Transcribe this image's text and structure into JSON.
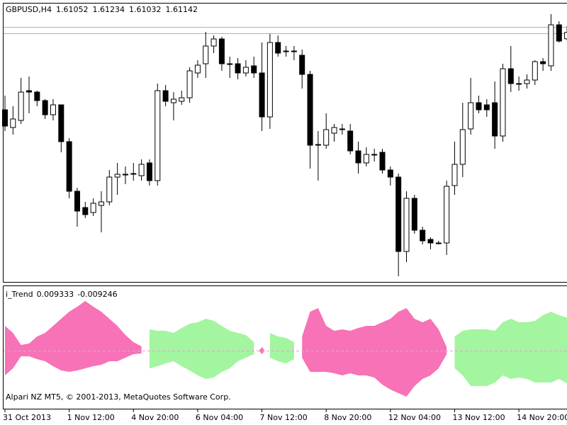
{
  "chart_data": [
    {
      "type": "candlestick",
      "title": "GBPUSD,H4",
      "categories": [
        "31 Oct 2013",
        null,
        null,
        null,
        null,
        null,
        null,
        null,
        "1 Nov 12:00",
        null,
        null,
        null,
        null,
        null,
        null,
        null,
        "4 Nov 20:00",
        null,
        null,
        null,
        null,
        null,
        null,
        null,
        "6 Nov 04:00",
        null,
        null,
        null,
        null,
        null,
        null,
        null,
        "7 Nov 12:00",
        null,
        null,
        null,
        null,
        null,
        null,
        null,
        "8 Nov 20:00",
        null,
        null,
        null,
        null,
        null,
        null,
        null,
        "12 Nov 04:00",
        null,
        null,
        null,
        null,
        null,
        null,
        null,
        "13 Nov 12:00",
        null,
        null,
        null,
        null,
        null,
        null,
        null,
        "14 Nov 20:00",
        null,
        null,
        null,
        null,
        null,
        null
      ],
      "open": [
        1.6005,
        1.598,
        1.599,
        1.6032,
        1.603,
        1.6018,
        1.5998,
        1.6012,
        1.596,
        1.589,
        1.5867,
        1.586,
        1.587,
        1.5875,
        1.591,
        1.5913,
        1.5914,
        1.5912,
        1.593,
        1.5905,
        1.6032,
        1.6015,
        1.6017,
        1.6022,
        1.6057,
        1.607,
        1.6095,
        1.6105,
        1.607,
        1.607,
        1.6057,
        1.6067,
        1.6057,
        1.5995,
        1.61,
        1.6088,
        1.6088,
        1.6082,
        1.6055,
        1.5955,
        1.5955,
        1.5972,
        1.5978,
        1.5975,
        1.5947,
        1.593,
        1.5942,
        1.5945,
        1.592,
        1.591,
        1.5805,
        1.588,
        1.5835,
        1.5822,
        1.5817,
        1.5817,
        1.5898,
        1.5928,
        1.5978,
        1.6015,
        1.6012,
        1.6015,
        1.5968,
        1.6063,
        1.6042,
        1.6042,
        1.6047,
        1.6073,
        1.6067,
        1.6125,
        1.61052
      ],
      "high": [
        1.6025,
        1.601,
        1.605,
        1.6052,
        1.6032,
        1.602,
        1.602,
        1.6012,
        1.5965,
        1.5895,
        1.5875,
        1.588,
        1.589,
        1.592,
        1.593,
        1.5925,
        1.593,
        1.5935,
        1.5935,
        1.6042,
        1.604,
        1.603,
        1.6032,
        1.6065,
        1.6075,
        1.6115,
        1.611,
        1.6108,
        1.608,
        1.6078,
        1.6075,
        1.608,
        1.61,
        1.6112,
        1.611,
        1.6095,
        1.6095,
        1.609,
        1.606,
        1.5975,
        1.6,
        1.5985,
        1.5985,
        1.5985,
        1.596,
        1.5952,
        1.595,
        1.595,
        1.5925,
        1.5915,
        1.589,
        1.5885,
        1.584,
        1.5825,
        1.582,
        1.5905,
        1.596,
        1.6015,
        1.605,
        1.6025,
        1.602,
        1.6045,
        1.607,
        1.6095,
        1.6052,
        1.6055,
        1.6075,
        1.6078,
        1.614,
        1.613,
        1.61234
      ],
      "low": [
        1.5975,
        1.597,
        1.5985,
        1.6,
        1.601,
        1.5992,
        1.599,
        1.5945,
        1.588,
        1.584,
        1.5852,
        1.5855,
        1.5832,
        1.587,
        1.5885,
        1.59,
        1.5905,
        1.5905,
        1.5898,
        1.5898,
        1.601,
        1.599,
        1.6012,
        1.6015,
        1.605,
        1.605,
        1.6085,
        1.606,
        1.605,
        1.6048,
        1.6052,
        1.605,
        1.5975,
        1.5978,
        1.608,
        1.608,
        1.6075,
        1.6035,
        1.5922,
        1.5905,
        1.595,
        1.596,
        1.597,
        1.5942,
        1.5915,
        1.5925,
        1.5932,
        1.5915,
        1.5898,
        1.577,
        1.579,
        1.583,
        1.5815,
        1.5808,
        1.5815,
        1.58,
        1.5885,
        1.591,
        1.597,
        1.6,
        1.5995,
        1.595,
        1.596,
        1.603,
        1.6032,
        1.6035,
        1.604,
        1.606,
        1.606,
        1.61,
        1.61032
      ],
      "close": [
        1.5982,
        1.5992,
        1.603,
        1.603,
        1.6018,
        1.5998,
        1.6012,
        1.596,
        1.589,
        1.5862,
        1.5857,
        1.5873,
        1.5875,
        1.591,
        1.5914,
        1.5914,
        1.5915,
        1.5928,
        1.5905,
        1.6032,
        1.6017,
        1.602,
        1.6022,
        1.606,
        1.6068,
        1.6095,
        1.6105,
        1.607,
        1.6069,
        1.6057,
        1.6065,
        1.6057,
        1.5995,
        1.61,
        1.6085,
        1.6087,
        1.6088,
        1.6055,
        1.5955,
        1.5956,
        1.5977,
        1.598,
        1.5977,
        1.5947,
        1.593,
        1.5942,
        1.5941,
        1.592,
        1.591,
        1.5805,
        1.588,
        1.5835,
        1.582,
        1.5817,
        1.5816,
        1.5897,
        1.5928,
        1.5977,
        1.6015,
        1.6005,
        1.6005,
        1.5968,
        1.6063,
        1.6042,
        1.6041,
        1.6047,
        1.6073,
        1.607,
        1.6125,
        1.6102,
        1.61142
      ],
      "up_color": "#ffffff",
      "down_color": "#000000",
      "ylim": [
        1.5762,
        1.6155
      ]
    },
    {
      "type": "area",
      "title": "i_Trend",
      "annotation": "Alpari NZ MT5, © 2001-2013, MetaQuotes Software Corp.",
      "ylim": [
        -0.016,
        0.016
      ],
      "series": [
        {
          "color": "#f772b6",
          "upper": [
            0.007,
            0.005,
            0.0016,
            0.002,
            0.004,
            0.005,
            0.007,
            0.009,
            0.011,
            0.0124,
            0.014,
            0.0124,
            0.011,
            0.009,
            0.007,
            0.0044,
            0.0024,
            0.0012,
            null,
            null,
            null,
            null,
            null,
            null,
            null,
            null,
            null,
            null,
            null,
            null,
            null,
            null,
            0.001,
            null,
            null,
            null,
            null,
            0.004,
            0.011,
            0.012,
            0.007,
            0.0056,
            0.006,
            0.0056,
            0.0064,
            0.007,
            0.007,
            0.008,
            0.009,
            0.011,
            0.012,
            0.009,
            0.008,
            0.009,
            0.006,
            0.001,
            null,
            null,
            null,
            null,
            null,
            null,
            null,
            null,
            null,
            null,
            null,
            null,
            null,
            null,
            null
          ],
          "lower": [
            -0.007,
            -0.005,
            -0.0016,
            -0.0016,
            -0.0024,
            -0.003,
            -0.0044,
            -0.0056,
            -0.006,
            -0.0056,
            -0.005,
            -0.0044,
            -0.004,
            -0.003,
            -0.003,
            -0.002,
            -0.001,
            -0.0008,
            null,
            null,
            null,
            null,
            null,
            null,
            null,
            null,
            null,
            null,
            null,
            null,
            null,
            null,
            -0.001,
            null,
            null,
            null,
            null,
            -0.002,
            -0.006,
            -0.006,
            -0.006,
            -0.0064,
            -0.007,
            -0.0064,
            -0.007,
            -0.007,
            -0.0076,
            -0.0096,
            -0.011,
            -0.012,
            -0.013,
            -0.01,
            -0.008,
            -0.007,
            -0.005,
            -0.001,
            null,
            null,
            null,
            null,
            null,
            null,
            null,
            null,
            null,
            null,
            null,
            null,
            null,
            null,
            null
          ]
        },
        {
          "color": "#a3f5a0",
          "upper": [
            null,
            null,
            null,
            null,
            null,
            null,
            null,
            null,
            null,
            null,
            null,
            null,
            null,
            null,
            null,
            null,
            null,
            null,
            0.006,
            0.0056,
            0.0056,
            0.005,
            0.0064,
            0.0076,
            0.008,
            0.009,
            0.0084,
            0.007,
            0.0056,
            0.005,
            0.0044,
            0.0024,
            null,
            0.005,
            0.004,
            0.0036,
            0.0024,
            null,
            null,
            null,
            null,
            null,
            null,
            null,
            null,
            null,
            null,
            null,
            null,
            null,
            null,
            null,
            null,
            null,
            null,
            null,
            0.004,
            0.0056,
            0.006,
            0.006,
            0.006,
            0.0056,
            0.008,
            0.009,
            0.008,
            0.008,
            0.0084,
            0.01,
            0.011,
            0.01,
            0.009333
          ],
          "lower": [
            null,
            null,
            null,
            null,
            null,
            null,
            null,
            null,
            null,
            null,
            null,
            null,
            null,
            null,
            null,
            null,
            null,
            null,
            -0.005,
            -0.0044,
            -0.0036,
            -0.003,
            -0.0044,
            -0.0056,
            -0.007,
            -0.008,
            -0.0076,
            -0.006,
            -0.005,
            -0.003,
            -0.002,
            -0.001,
            null,
            -0.002,
            -0.003,
            -0.0036,
            -0.0024,
            null,
            null,
            null,
            null,
            null,
            null,
            null,
            null,
            null,
            null,
            null,
            null,
            null,
            null,
            null,
            null,
            null,
            null,
            null,
            -0.005,
            -0.007,
            -0.01,
            -0.01,
            -0.01,
            -0.009,
            -0.007,
            -0.008,
            -0.0076,
            -0.008,
            -0.009,
            -0.009,
            -0.009,
            -0.008,
            -0.009246
          ]
        }
      ]
    }
  ]
}
